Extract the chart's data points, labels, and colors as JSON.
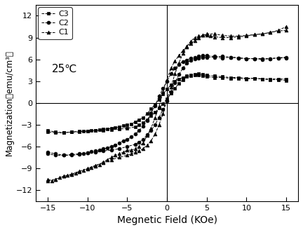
{
  "xlabel": "Megnetic Field (KOe)",
  "ylabel": "Magnetization（emu/cm³）",
  "xlim": [
    -16.5,
    16.5
  ],
  "ylim": [
    -13.5,
    13.5
  ],
  "xticks": [
    -15,
    -10,
    -5,
    0,
    5,
    10,
    15
  ],
  "yticks": [
    -12,
    -9,
    -6,
    -3,
    0,
    3,
    6,
    9,
    12
  ],
  "annotation": "25℃",
  "legend_labels": [
    "C3",
    "C2",
    "C1"
  ],
  "background_color": "#ffffff",
  "C3_branch1_x": [
    -15.0,
    -14.0,
    -13.0,
    -12.0,
    -11.0,
    -10.5,
    -10.0,
    -9.5,
    -9.0,
    -8.5,
    -8.0,
    -7.5,
    -7.0,
    -6.5,
    -6.0,
    -5.5,
    -5.0,
    -4.5,
    -4.0,
    -3.5,
    -3.0,
    -2.5,
    -2.0,
    -1.5,
    -1.0,
    -0.5,
    0.0,
    0.5,
    1.0,
    1.5,
    2.0,
    2.5,
    3.0,
    3.5,
    4.0,
    4.5,
    5.0,
    6.0,
    7.0,
    8.0,
    9.0,
    10.0,
    11.0,
    12.0,
    13.0,
    14.0,
    15.0
  ],
  "C3_branch1_y": [
    -3.8,
    -4.0,
    -4.1,
    -4.0,
    -4.0,
    -3.9,
    -3.9,
    -3.8,
    -3.8,
    -3.7,
    -3.6,
    -3.6,
    -3.5,
    -3.4,
    -3.3,
    -3.1,
    -3.0,
    -2.9,
    -2.6,
    -2.3,
    -2.0,
    -1.5,
    -0.8,
    -0.2,
    0.5,
    1.2,
    1.9,
    2.5,
    3.0,
    3.3,
    3.5,
    3.7,
    3.8,
    3.9,
    4.0,
    3.9,
    3.8,
    3.7,
    3.6,
    3.5,
    3.5,
    3.4,
    3.4,
    3.3,
    3.2,
    3.2,
    3.1
  ],
  "C3_branch2_x": [
    15.0,
    14.0,
    13.0,
    12.0,
    11.0,
    10.0,
    9.0,
    8.0,
    7.0,
    6.0,
    5.0,
    4.5,
    4.0,
    3.5,
    3.0,
    2.5,
    2.0,
    1.5,
    1.0,
    0.5,
    0.0,
    -0.5,
    -1.0,
    -1.5,
    -2.0,
    -2.5,
    -3.0,
    -3.5,
    -4.0,
    -5.0,
    -6.0,
    -7.0,
    -8.0,
    -9.0,
    -10.0,
    -11.0,
    -12.0,
    -13.0,
    -14.0,
    -15.0
  ],
  "C3_branch2_y": [
    3.3,
    3.3,
    3.3,
    3.3,
    3.4,
    3.3,
    3.4,
    3.4,
    3.5,
    3.5,
    3.6,
    3.7,
    3.8,
    3.8,
    3.7,
    3.6,
    3.2,
    2.7,
    2.0,
    1.3,
    0.6,
    -0.1,
    -0.7,
    -1.3,
    -1.8,
    -2.3,
    -2.7,
    -3.0,
    -3.3,
    -3.5,
    -3.6,
    -3.7,
    -3.8,
    -3.8,
    -3.9,
    -3.9,
    -4.0,
    -4.1,
    -4.1,
    -4.0
  ],
  "C2_branch1_x": [
    -15.0,
    -14.0,
    -13.0,
    -12.0,
    -11.0,
    -10.5,
    -10.0,
    -9.5,
    -9.0,
    -8.5,
    -8.0,
    -7.5,
    -7.0,
    -6.5,
    -6.0,
    -5.5,
    -5.0,
    -4.5,
    -4.0,
    -3.5,
    -3.0,
    -2.5,
    -2.0,
    -1.5,
    -1.0,
    -0.5,
    0.0,
    0.5,
    1.0,
    1.5,
    2.0,
    2.5,
    3.0,
    3.5,
    4.0,
    4.5,
    5.0,
    6.0,
    7.0,
    8.0,
    9.0,
    10.0,
    11.0,
    12.0,
    13.0,
    14.0,
    15.0
  ],
  "C2_branch1_y": [
    -6.8,
    -7.0,
    -7.2,
    -7.2,
    -7.1,
    -7.0,
    -6.9,
    -6.7,
    -6.6,
    -6.5,
    -6.3,
    -6.2,
    -6.0,
    -5.8,
    -5.5,
    -5.2,
    -5.0,
    -4.7,
    -4.3,
    -3.8,
    -3.2,
    -2.4,
    -1.4,
    -0.4,
    0.9,
    2.0,
    3.0,
    4.0,
    4.8,
    5.3,
    5.7,
    5.9,
    6.2,
    6.3,
    6.4,
    6.5,
    6.5,
    6.4,
    6.4,
    6.3,
    6.2,
    6.1,
    6.1,
    6.0,
    6.1,
    6.2,
    6.2
  ],
  "C2_branch2_x": [
    15.0,
    14.0,
    13.0,
    12.0,
    11.0,
    10.0,
    9.0,
    8.0,
    7.0,
    6.0,
    5.0,
    4.5,
    4.0,
    3.5,
    3.0,
    2.5,
    2.0,
    1.5,
    1.0,
    0.5,
    0.0,
    -0.5,
    -1.0,
    -1.5,
    -2.0,
    -2.5,
    -3.0,
    -3.5,
    -4.0,
    -5.0,
    -6.0,
    -7.0,
    -8.0,
    -9.0,
    -10.0,
    -11.0,
    -12.0,
    -13.0,
    -14.0,
    -15.0
  ],
  "C2_branch2_y": [
    6.3,
    6.2,
    6.1,
    6.1,
    6.1,
    6.1,
    6.2,
    6.3,
    6.2,
    6.3,
    6.3,
    6.3,
    6.2,
    6.1,
    5.9,
    5.5,
    4.8,
    3.9,
    2.8,
    1.5,
    0.3,
    -0.9,
    -2.0,
    -3.0,
    -3.8,
    -4.4,
    -5.0,
    -5.4,
    -5.7,
    -6.0,
    -6.3,
    -6.5,
    -6.6,
    -6.8,
    -6.9,
    -7.0,
    -7.1,
    -7.2,
    -7.2,
    -7.0
  ],
  "C1_branch1_x": [
    -15.0,
    -14.5,
    -14.0,
    -13.5,
    -13.0,
    -12.5,
    -12.0,
    -11.5,
    -11.0,
    -10.5,
    -10.0,
    -9.5,
    -9.0,
    -8.5,
    -8.0,
    -7.5,
    -7.0,
    -6.5,
    -6.0,
    -5.5,
    -5.0,
    -4.5,
    -4.0,
    -3.5,
    -3.0,
    -2.5,
    -2.0,
    -1.5,
    -1.0,
    -0.5,
    0.0,
    0.5,
    1.0,
    1.5,
    2.0,
    2.5,
    3.0,
    3.5,
    4.0,
    4.5,
    5.0,
    6.0,
    7.0,
    8.0,
    9.0,
    10.0,
    11.0,
    12.0,
    13.0,
    14.0,
    15.0
  ],
  "C1_branch1_y": [
    -10.5,
    -10.7,
    -10.5,
    -10.3,
    -10.1,
    -10.0,
    -9.9,
    -9.7,
    -9.5,
    -9.3,
    -9.1,
    -8.9,
    -8.7,
    -8.5,
    -8.1,
    -7.8,
    -7.5,
    -7.2,
    -7.0,
    -6.8,
    -6.5,
    -6.5,
    -6.3,
    -6.0,
    -5.5,
    -4.5,
    -3.5,
    -2.0,
    -0.5,
    1.5,
    3.2,
    4.8,
    5.8,
    6.5,
    7.2,
    7.7,
    8.2,
    8.6,
    9.0,
    9.3,
    9.5,
    9.5,
    9.3,
    9.2,
    9.2,
    9.3,
    9.4,
    9.5,
    9.7,
    10.0,
    10.5
  ],
  "C1_branch2_x": [
    15.0,
    14.0,
    13.0,
    12.0,
    11.0,
    10.0,
    9.0,
    8.0,
    7.0,
    6.0,
    5.5,
    5.0,
    4.5,
    4.0,
    3.5,
    3.0,
    2.5,
    2.0,
    1.5,
    1.0,
    0.5,
    0.0,
    -0.5,
    -1.0,
    -1.5,
    -2.0,
    -2.5,
    -3.0,
    -3.5,
    -4.0,
    -4.5,
    -5.0,
    -6.0,
    -7.0,
    -8.0,
    -9.0,
    -10.0,
    -11.0,
    -12.0,
    -13.0,
    -14.0,
    -15.0
  ],
  "C1_branch2_y": [
    10.0,
    9.9,
    9.7,
    9.5,
    9.4,
    9.2,
    9.1,
    9.0,
    9.0,
    9.1,
    9.2,
    9.3,
    9.3,
    9.2,
    9.0,
    8.5,
    7.8,
    6.8,
    5.5,
    4.0,
    2.2,
    0.5,
    -1.5,
    -3.0,
    -4.3,
    -5.2,
    -5.8,
    -6.3,
    -6.6,
    -6.8,
    -7.0,
    -7.2,
    -7.5,
    -7.8,
    -8.2,
    -8.6,
    -9.0,
    -9.4,
    -9.8,
    -10.1,
    -10.5,
    -10.7
  ]
}
